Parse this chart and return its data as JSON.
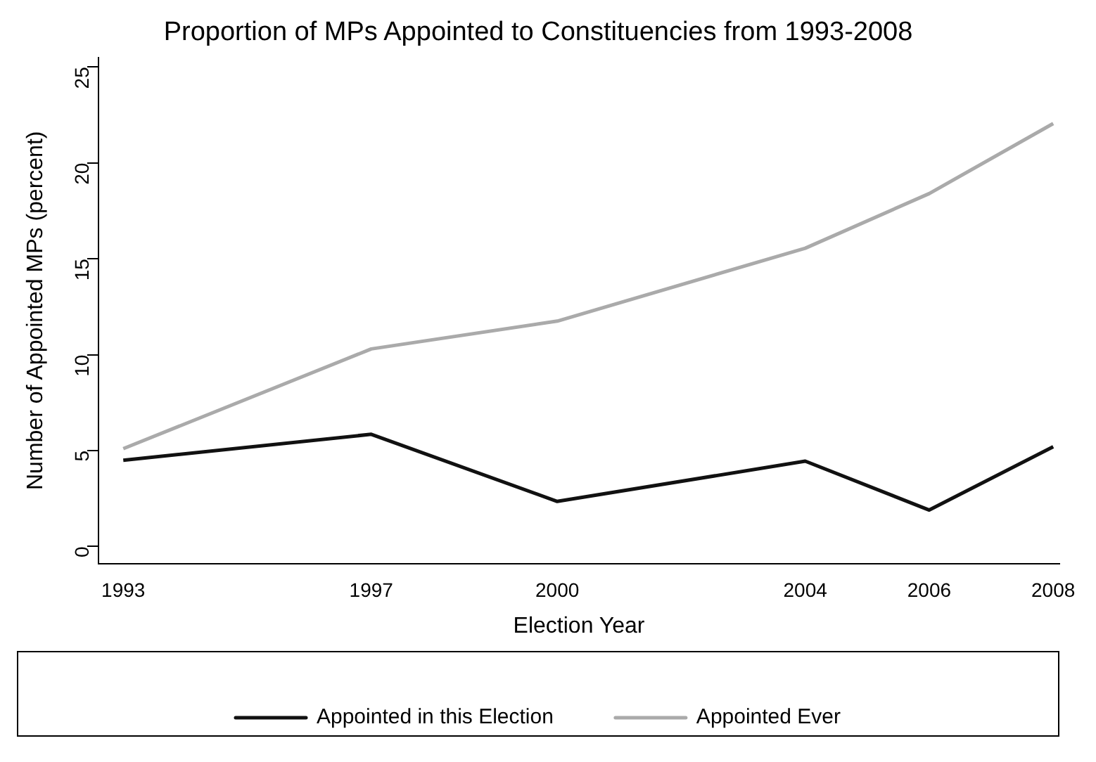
{
  "chart_data": {
    "type": "line",
    "title": "Proportion of MPs Appointed to Constituencies from 1993-2008",
    "xlabel": "Election Year",
    "ylabel": "Number of Appointed MPs (percent)",
    "x": [
      1993,
      1997,
      2000,
      2004,
      2006,
      2008
    ],
    "series": [
      {
        "name": "Appointed in this Election",
        "color": "#111111",
        "values": [
          4.5,
          5.85,
          2.35,
          4.45,
          1.9,
          5.2
        ]
      },
      {
        "name": "Appointed Ever",
        "color": "#aaaaaa",
        "values": [
          5.1,
          10.3,
          11.75,
          15.55,
          18.4,
          22.05
        ]
      }
    ],
    "xlim": [
      1992.6,
      2008.1
    ],
    "ylim": [
      -0.9,
      25.5
    ],
    "xticks": [
      1993,
      1997,
      2000,
      2004,
      2006,
      2008
    ],
    "yticks": [
      0,
      5,
      10,
      15,
      20,
      25
    ],
    "grid": false,
    "legend": "bottom",
    "marker": "none",
    "line_style": "solid"
  }
}
